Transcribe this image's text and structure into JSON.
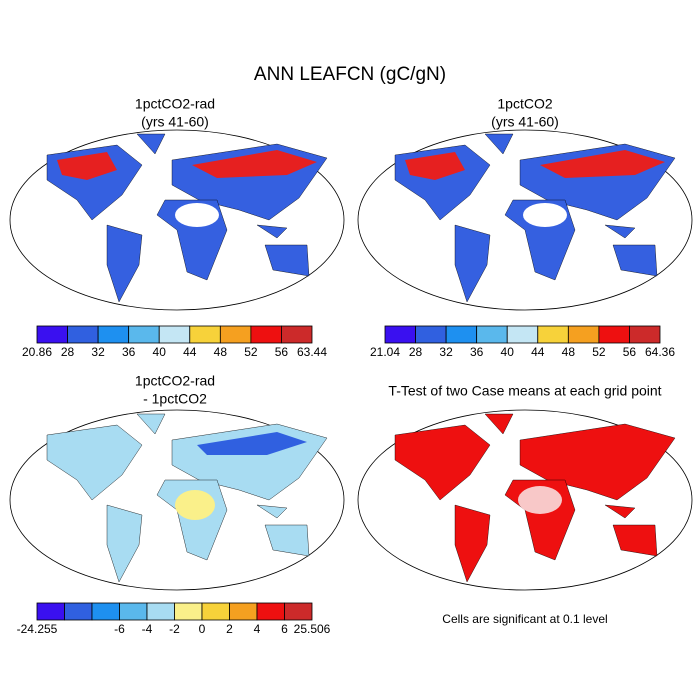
{
  "title": "ANN LEAFCN (gC/gN)",
  "panels": [
    {
      "title": [
        "1pctCO2-rad",
        "(yrs 41-60)"
      ],
      "colorbar": {
        "colors": [
          "#3a10f0",
          "#3060e0",
          "#1e90f0",
          "#5ab8ec",
          "#c4e6f4",
          "#f7d23a",
          "#f5a020",
          "#ee1010",
          "#cc2a2a"
        ],
        "labels": [
          20.86,
          28,
          32,
          36,
          40,
          44,
          48,
          52,
          56,
          63.44
        ]
      }
    },
    {
      "title": [
        "1pctCO2",
        "(yrs 41-60)"
      ],
      "colorbar": {
        "colors": [
          "#3a10f0",
          "#3060e0",
          "#1e90f0",
          "#5ab8ec",
          "#c4e6f4",
          "#f7d23a",
          "#f5a020",
          "#ee1010",
          "#cc2a2a"
        ],
        "labels": [
          21.04,
          28,
          32,
          36,
          40,
          44,
          48,
          52,
          56,
          64.36
        ]
      }
    },
    {
      "title": [
        "1pctCO2-rad",
        "- 1pctCO2"
      ],
      "colorbar": {
        "colors": [
          "#3a10f0",
          "#3060e0",
          "#1e90f0",
          "#5ab8ec",
          "#a8dcf2",
          "#faf08a",
          "#f7d23a",
          "#f5a020",
          "#ee1010",
          "#cc2a2a"
        ],
        "labels": [
          -24.255,
          null,
          null,
          -6,
          -4,
          -2,
          0,
          2,
          4,
          6,
          25.506
        ]
      }
    },
    {
      "title": [
        "T-Test of two Case means at each grid point"
      ]
    }
  ],
  "note": "Cells are significant at 0.1 level"
}
